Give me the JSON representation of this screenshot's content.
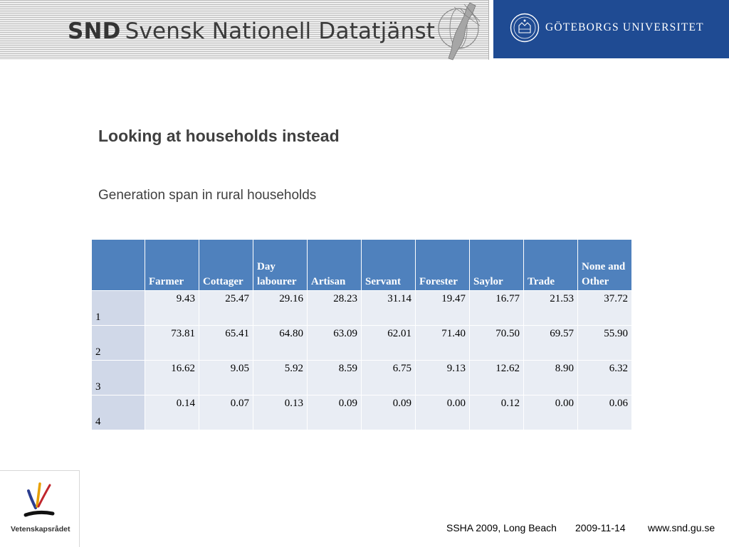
{
  "header": {
    "snd_abbr": "SND",
    "snd_name": "Svensk Nationell Datatjänst",
    "university": "GÖTEBORGS UNIVERSITET"
  },
  "slide": {
    "title": "Looking at households instead",
    "subtitle": "Generation span in rural households"
  },
  "table": {
    "columns": [
      "",
      "Farmer",
      "Cottager",
      "Day labourer",
      "Artisan",
      "Servant",
      "Forester",
      "Saylor",
      "Trade",
      "None and Other"
    ],
    "rows": [
      {
        "label": "1",
        "values": [
          "9.43",
          "25.47",
          "29.16",
          "28.23",
          "31.14",
          "19.47",
          "16.77",
          "21.53",
          "37.72"
        ]
      },
      {
        "label": "2",
        "values": [
          "73.81",
          "65.41",
          "64.80",
          "63.09",
          "62.01",
          "71.40",
          "70.50",
          "69.57",
          "55.90"
        ]
      },
      {
        "label": "3",
        "values": [
          "16.62",
          "9.05",
          "5.92",
          "8.59",
          "6.75",
          "9.13",
          "12.62",
          "8.90",
          "6.32"
        ]
      },
      {
        "label": "4",
        "values": [
          "0.14",
          "0.07",
          "0.13",
          "0.09",
          "0.09",
          "0.00",
          "0.12",
          "0.00",
          "0.06"
        ]
      }
    ]
  },
  "footer": {
    "logo_text": "Vetenskapsrådet",
    "conference": "SSHA 2009, Long Beach",
    "date": "2009-11-14",
    "url": "www.snd.gu.se"
  },
  "colors": {
    "header_blue": "#1f4b93",
    "table_header": "#4f81bd",
    "row_label_bg": "#d0d8e8",
    "cell_bg": "#e9edf4"
  }
}
